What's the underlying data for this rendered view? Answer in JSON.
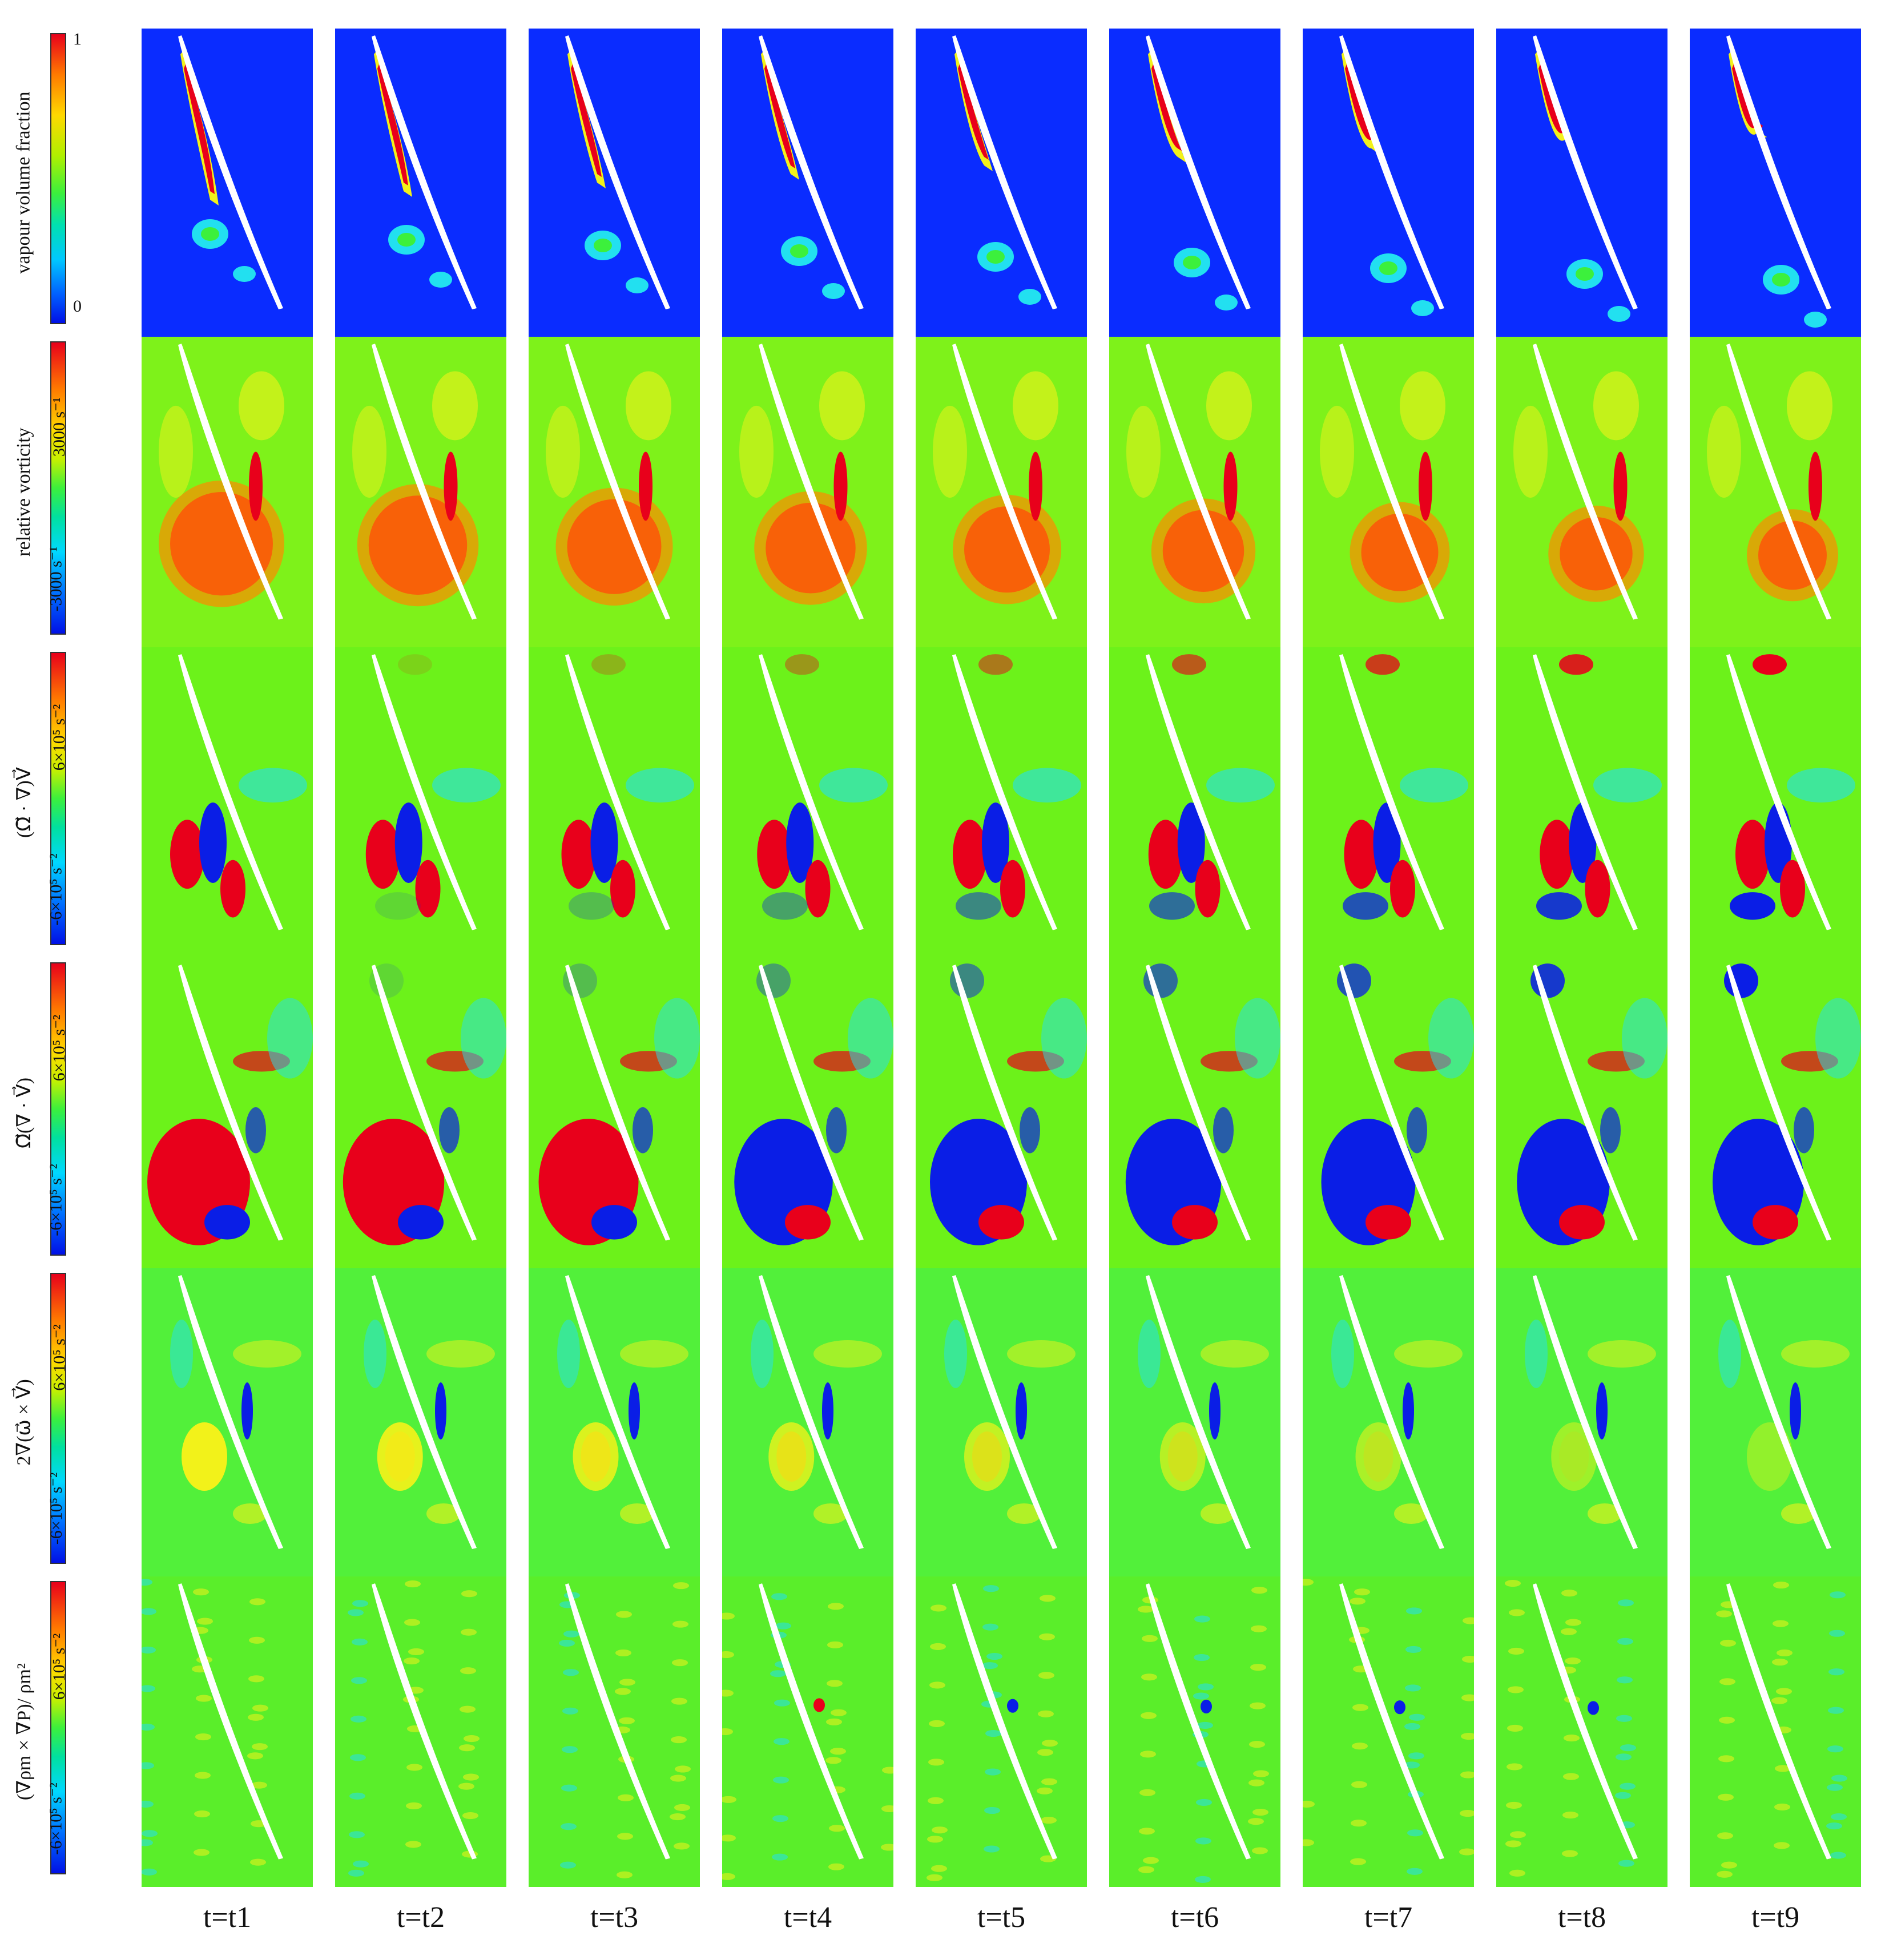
{
  "columns": [
    "t=t1",
    "t=t2",
    "t=t3",
    "t=t4",
    "t=t5",
    "t=t6",
    "t=t7",
    "t=t8",
    "t=t9"
  ],
  "rows": [
    {
      "label": "vapour volume fraction",
      "max": "1",
      "min": "0",
      "background": "#0a2cff",
      "kind": "vapour"
    },
    {
      "label": "relative vorticity",
      "max": "3000 s⁻¹",
      "min": "-3000 s⁻¹",
      "background": "#7ef21a",
      "kind": "vorticity"
    },
    {
      "label": "(Ω⃗ · ∇)V⃗",
      "max": "6×10⁵ s⁻²",
      "min": "-6×10⁵ s⁻²",
      "background": "#6cf21a",
      "kind": "stretch"
    },
    {
      "label": "Ω⃗(∇ · V⃗)",
      "max": "6×10⁵ s⁻²",
      "min": "-6×10⁵ s⁻²",
      "background": "#6cf21a",
      "kind": "dilatation"
    },
    {
      "label": "2∇(ω⃗ × V⃗)",
      "max": "6×10⁵ s⁻²",
      "min": "-6×10⁵ s⁻²",
      "background": "#52f03a",
      "kind": "coriolis"
    },
    {
      "label": "(∇ρm × ∇P)/ ρm²",
      "max": "6×10⁵ s⁻²",
      "min": "-6×10⁵ s⁻²",
      "background": "#5aee2a",
      "kind": "baroclinic"
    }
  ],
  "colors": {
    "red": "#e8001b",
    "orange": "#ff8a00",
    "yellow": "#f2f21a",
    "cyan": "#22e0f0",
    "blue": "#0a1ee6",
    "white": "#ffffff"
  }
}
